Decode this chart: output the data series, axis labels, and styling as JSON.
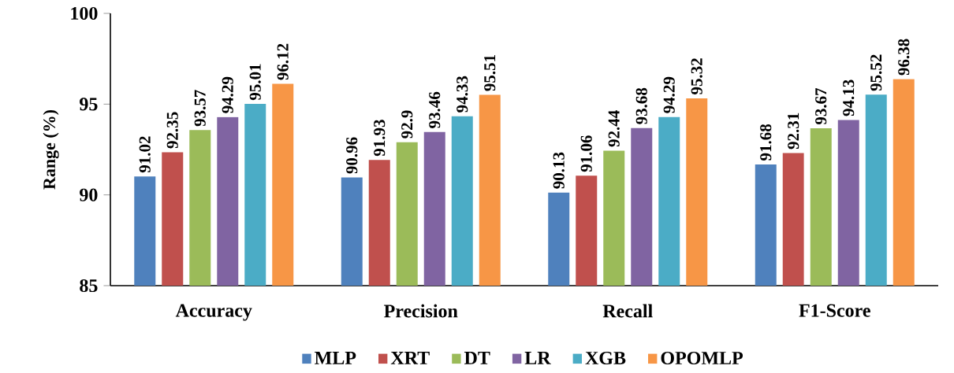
{
  "chart_data": {
    "type": "bar",
    "ylabel": "Range (%)",
    "categories": [
      "Accuracy",
      "Precision",
      "Recall",
      "F1-Score"
    ],
    "series": [
      {
        "name": "MLP",
        "color": "#4f81bd",
        "values": [
          91.02,
          90.96,
          90.13,
          91.68
        ]
      },
      {
        "name": "XRT",
        "color": "#c0504d",
        "values": [
          92.35,
          91.93,
          91.06,
          92.31
        ]
      },
      {
        "name": "DT",
        "color": "#9bbb59",
        "values": [
          93.57,
          92.9,
          92.44,
          93.67
        ]
      },
      {
        "name": "LR",
        "color": "#8064a2",
        "values": [
          94.29,
          93.46,
          93.68,
          94.13
        ]
      },
      {
        "name": "XGB",
        "color": "#4bacc6",
        "values": [
          95.01,
          94.33,
          94.29,
          95.52
        ]
      },
      {
        "name": "OPOMLP",
        "color": "#f79646",
        "values": [
          96.12,
          95.51,
          95.32,
          96.38
        ]
      }
    ],
    "ylim": [
      85,
      100
    ],
    "yticks": [
      85,
      90,
      95,
      100
    ],
    "data_labels": true,
    "legend": "bottom"
  }
}
